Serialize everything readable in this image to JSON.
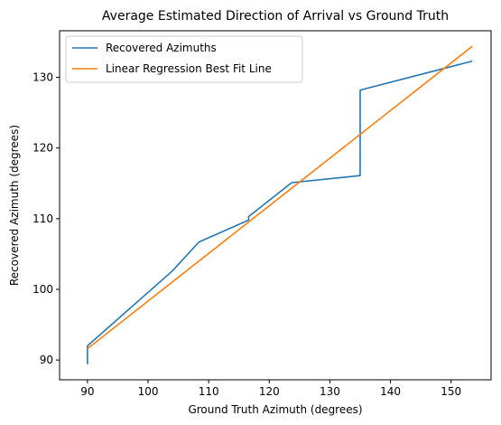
{
  "chart_data": {
    "type": "line",
    "title": "Average Estimated Direction of Arrival vs Ground Truth",
    "xlabel": "Ground Truth Azimuth (degrees)",
    "ylabel": "Recovered Azimuth (degrees)",
    "xlim": [
      85.4,
      156.6
    ],
    "ylim": [
      87.2,
      136.6
    ],
    "xticks": [
      90,
      100,
      110,
      120,
      130,
      140,
      150
    ],
    "yticks": [
      90,
      100,
      110,
      120,
      130
    ],
    "grid": false,
    "legend_position": "top-left",
    "series": [
      {
        "name": "Recovered Azimuths",
        "color": "#1f77b4",
        "x": [
          90,
          90,
          104,
          108.4,
          116.6,
          116.6,
          123.7,
          135,
          135,
          153.5
        ],
        "y": [
          89.4,
          92.0,
          102.6,
          106.7,
          109.8,
          110.3,
          115.1,
          116.1,
          128.2,
          132.3
        ]
      },
      {
        "name": "Linear Regression Best Fit Line",
        "color": "#ff7f0e",
        "x": [
          90,
          153.5
        ],
        "y": [
          91.6,
          134.4
        ]
      }
    ]
  }
}
